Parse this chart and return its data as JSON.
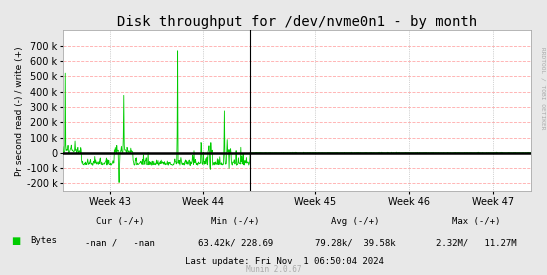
{
  "title": "Disk throughput for /dev/nvme0n1 - by month",
  "ylabel": "Pr second read (-) / write (+)",
  "background_color": "#e8e8e8",
  "plot_bg_color": "#ffffff",
  "grid_color_h": "#ffaaaa",
  "grid_color_v": "#aaaaaa",
  "line_color": "#00cc00",
  "zero_line_color": "#000000",
  "vline_color": "#000000",
  "ylim": [
    -250000,
    800000
  ],
  "yticks": [
    -200000,
    -100000,
    0,
    100000,
    200000,
    300000,
    400000,
    500000,
    600000,
    700000
  ],
  "week_labels": [
    "Week 43",
    "Week 44",
    "Week 45",
    "Week 46",
    "Week 47"
  ],
  "legend_label": "Bytes",
  "legend_color": "#00cc00",
  "cur_label": "Cur (-/+)",
  "cur_val": "-nan /   -nan",
  "min_label": "Min (-/+)",
  "min_val": "63.42k/ 228.69",
  "avg_label": "Avg (-/+)",
  "avg_val": "79.28k/  39.58k",
  "max_label": "Max (-/+)",
  "max_val": "2.32M/   11.27M",
  "last_update": "Last update: Fri Nov  1 06:50:04 2024",
  "munin_label": "Munin 2.0.67",
  "rrdtool_label": "RRDTOOL / TOBI OETIKER",
  "title_fontsize": 10,
  "tick_fontsize": 7,
  "label_fontsize": 7
}
